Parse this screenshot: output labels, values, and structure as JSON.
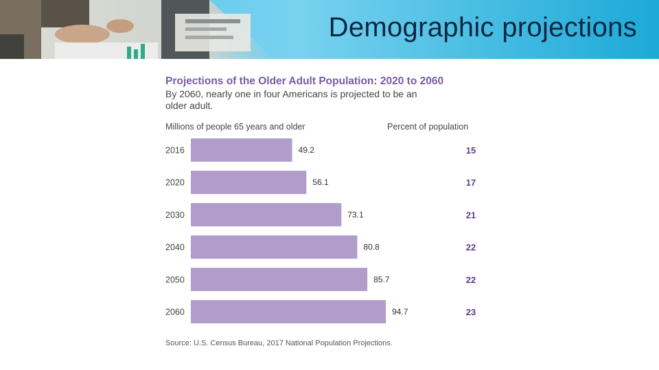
{
  "slide": {
    "title": "Demographic projections"
  },
  "colors": {
    "bar": "#b09dc9",
    "percent": "#5e3c8c",
    "title": "#7a5aa6",
    "header_start": "#4fc0e6",
    "header_end": "#1ca9d8"
  },
  "chart_data": {
    "type": "bar",
    "orientation": "horizontal",
    "title": "Projections of the Older Adult Population: 2020 to 2060",
    "subtitle": "By 2060, nearly one in four Americans is projected to be an older adult.",
    "xlabel": "Millions of people 65 years and older",
    "secondary_label": "Percent of population",
    "categories": [
      "2016",
      "2020",
      "2030",
      "2040",
      "2050",
      "2060"
    ],
    "series": [
      {
        "name": "Millions of people 65 years and older",
        "values": [
          49.2,
          56.1,
          73.1,
          80.8,
          85.7,
          94.7
        ]
      },
      {
        "name": "Percent of population",
        "values": [
          15,
          17,
          21,
          22,
          22,
          23
        ]
      }
    ],
    "xlim": [
      0,
      117
    ],
    "value_labels": [
      "49.2",
      "56.1",
      "73.1",
      "80.8",
      "85.7",
      "94.7"
    ],
    "percent_labels": [
      "15",
      "17",
      "21",
      "22",
      "22",
      "23"
    ],
    "source": "Source: U.S. Census Bureau, 2017 National Population Projections."
  }
}
